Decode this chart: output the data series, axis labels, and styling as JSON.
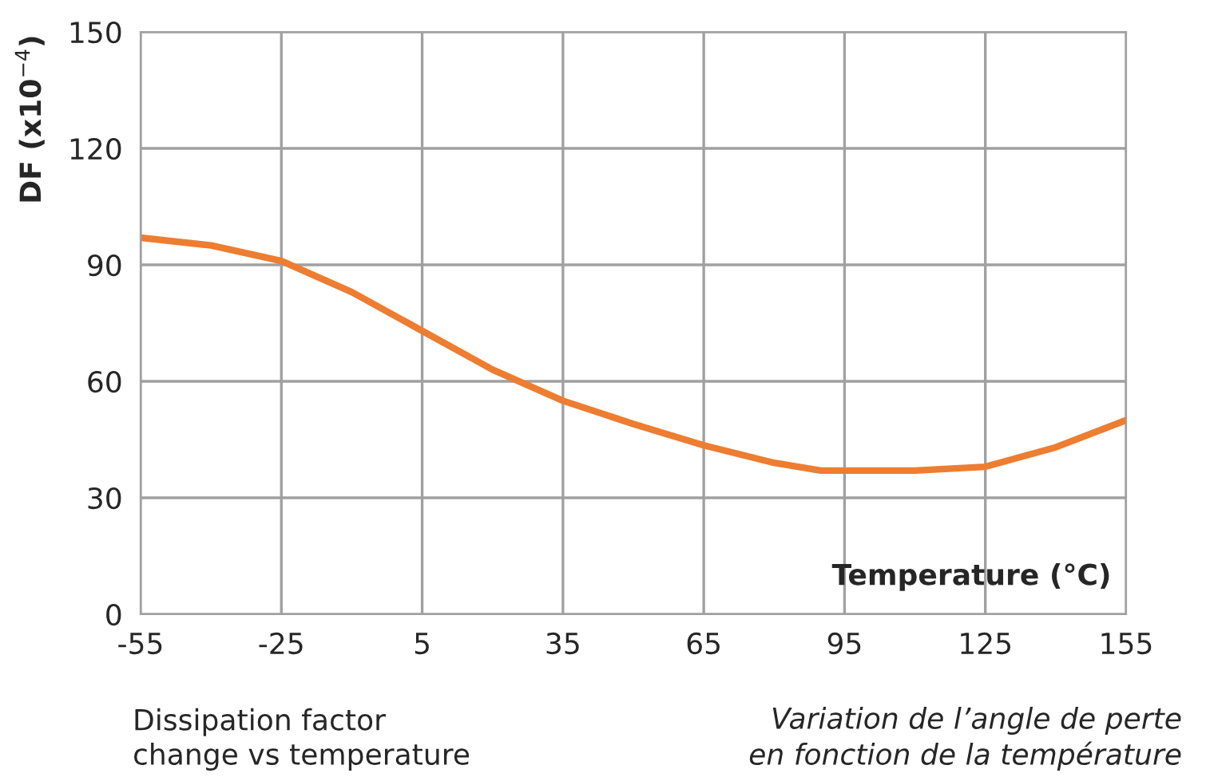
{
  "chart_data": {
    "type": "line",
    "ylabel": "DF (x10$^{−4}$)",
    "xlabel": "Temperature (°C)",
    "x": [
      -55,
      -40,
      -25,
      -10,
      5,
      20,
      35,
      50,
      65,
      80,
      90,
      95,
      110,
      125,
      140,
      155
    ],
    "series": [
      {
        "color": "#ed7d31",
        "values": [
          97,
          95,
          91,
          83,
          73,
          63,
          55,
          49,
          43.5,
          39,
          37,
          37,
          37,
          38,
          43,
          50
        ]
      }
    ],
    "xlim": [
      -55,
      155
    ],
    "xticks": [
      -55,
      -25,
      5,
      35,
      65,
      95,
      125,
      155
    ],
    "ylim": [
      0,
      150
    ],
    "yticks": [
      0,
      30,
      60,
      90,
      120,
      150
    ],
    "grid": true,
    "marker": "none",
    "line_style": "solid",
    "annotations": [
      "Dissipation factor\nchange vs temperature",
      "Variation de l’angle de perte\nen fonction de la température"
    ]
  }
}
